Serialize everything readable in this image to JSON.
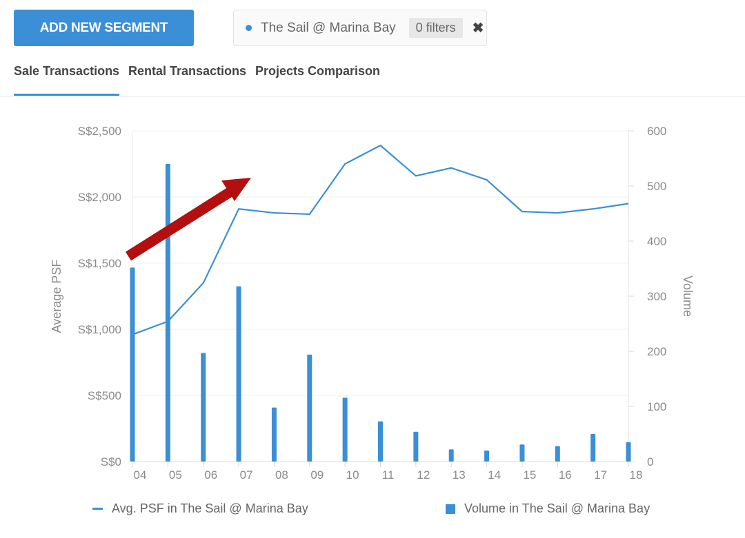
{
  "toolbar": {
    "add_segment_label": "ADD NEW SEGMENT"
  },
  "segment": {
    "name": "The Sail @ Marina Bay",
    "filters_label": "0 filters",
    "close_glyph": "✖",
    "color": "#3a8fd6"
  },
  "tabs": [
    {
      "label": "Sale Transactions",
      "active": true
    },
    {
      "label": "Rental Transactions",
      "active": false
    },
    {
      "label": "Projects Comparison",
      "active": false
    }
  ],
  "chart_data": {
    "type": "bar+line",
    "categories": [
      "04",
      "05",
      "06",
      "07",
      "08",
      "09",
      "10",
      "11",
      "12",
      "13",
      "14",
      "15",
      "16",
      "17",
      "18"
    ],
    "series": [
      {
        "name": "Avg. PSF in The Sail @ Marina Bay",
        "type": "line",
        "axis": "left",
        "values": [
          960,
          1060,
          1350,
          1910,
          1880,
          1870,
          2250,
          2390,
          2160,
          2220,
          2130,
          1890,
          1880,
          1910,
          1950
        ]
      },
      {
        "name": "Volume in The Sail @ Marina Bay",
        "type": "bar",
        "axis": "right",
        "values": [
          352,
          540,
          197,
          318,
          98,
          194,
          116,
          73,
          54,
          22,
          20,
          31,
          28,
          50,
          35
        ]
      }
    ],
    "left_axis": {
      "title": "Average PSF",
      "ticks": [
        "S$0",
        "S$500",
        "S$1,000",
        "S$1,500",
        "S$2,000",
        "S$2,500"
      ],
      "range": [
        0,
        2500
      ]
    },
    "right_axis": {
      "title": "Volume",
      "ticks": [
        "0",
        "100",
        "200",
        "300",
        "400",
        "500",
        "600"
      ],
      "range": [
        0,
        600
      ]
    },
    "grid": true,
    "legend_position": "bottom",
    "color": "#3a8fd6",
    "annotation": {
      "type": "arrow",
      "color": "#b30f0f",
      "direction": "up-right"
    }
  },
  "legend": {
    "line_label": "Avg. PSF in The Sail @ Marina Bay",
    "bar_label": "Volume in The Sail @ Marina Bay"
  }
}
